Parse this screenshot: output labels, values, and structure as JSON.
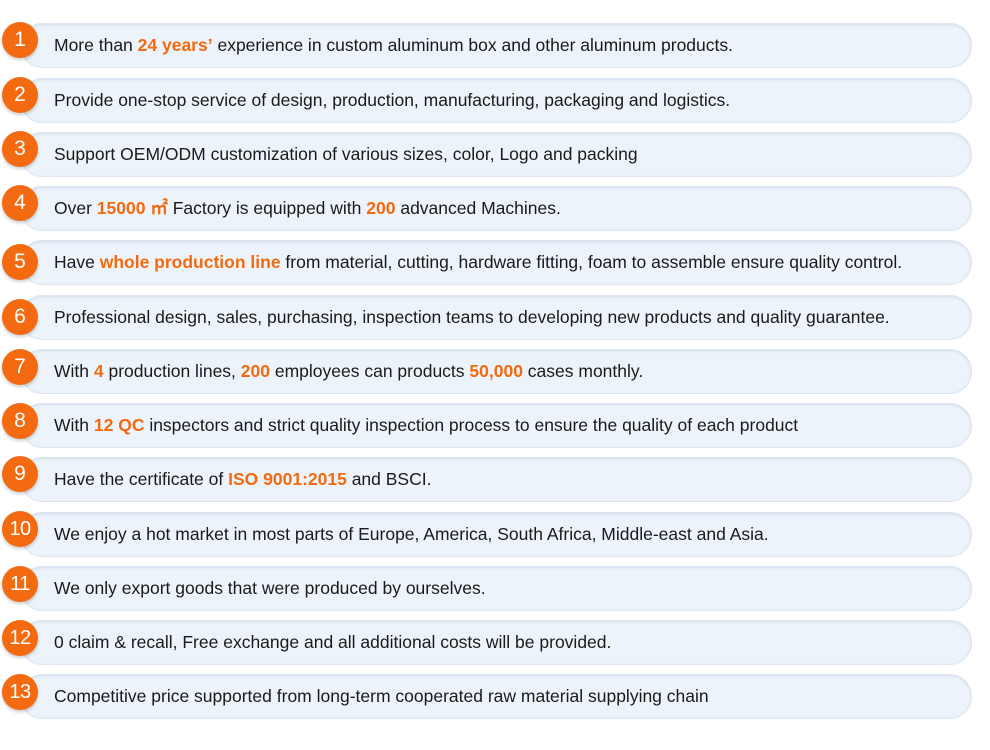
{
  "items": [
    {
      "num": "1",
      "segments": [
        {
          "text": "More than ",
          "hl": false
        },
        {
          "text": "24 years’",
          "hl": true
        },
        {
          "text": " experience in custom aluminum box and other aluminum products.",
          "hl": false
        }
      ]
    },
    {
      "num": "2",
      "segments": [
        {
          "text": "Provide one-stop service of design, production, manufacturing, packaging and logistics.",
          "hl": false
        }
      ]
    },
    {
      "num": "3",
      "segments": [
        {
          "text": "Support OEM/ODM customization of various sizes, color, Logo and packing",
          "hl": false
        }
      ]
    },
    {
      "num": "4",
      "segments": [
        {
          "text": "Over ",
          "hl": false
        },
        {
          "text": "15000 ㎡",
          "hl": true
        },
        {
          "text": " Factory is equipped with ",
          "hl": false
        },
        {
          "text": "200",
          "hl": true
        },
        {
          "text": " advanced Machines.",
          "hl": false
        }
      ]
    },
    {
      "num": "5",
      "segments": [
        {
          "text": "Have ",
          "hl": false
        },
        {
          "text": "whole production line",
          "hl": true
        },
        {
          "text": " from material, cutting, hardware fitting, foam to assemble ensure quality control.",
          "hl": false
        }
      ]
    },
    {
      "num": "6",
      "segments": [
        {
          "text": "Professional design, sales, purchasing, inspection teams to developing new products and quality guarantee.",
          "hl": false
        }
      ]
    },
    {
      "num": "7",
      "segments": [
        {
          "text": "With ",
          "hl": false
        },
        {
          "text": "4",
          "hl": true
        },
        {
          "text": " production lines, ",
          "hl": false
        },
        {
          "text": "200",
          "hl": true
        },
        {
          "text": " employees can products ",
          "hl": false
        },
        {
          "text": "50,000",
          "hl": true
        },
        {
          "text": " cases monthly.",
          "hl": false
        }
      ]
    },
    {
      "num": "8",
      "segments": [
        {
          "text": "With ",
          "hl": false
        },
        {
          "text": "12 QC",
          "hl": true
        },
        {
          "text": " inspectors and strict quality inspection process to ensure the quality of each product",
          "hl": false
        }
      ]
    },
    {
      "num": "9",
      "segments": [
        {
          "text": "Have the certificate of ",
          "hl": false
        },
        {
          "text": "ISO 9001:2015",
          "hl": true
        },
        {
          "text": " and BSCI.",
          "hl": false
        }
      ]
    },
    {
      "num": "10",
      "segments": [
        {
          "text": "We enjoy a hot market in most parts of Europe, America, South Africa, Middle-east and Asia.",
          "hl": false
        }
      ]
    },
    {
      "num": "11",
      "segments": [
        {
          "text": "We only export goods that were produced by ourselves.",
          "hl": false
        }
      ]
    },
    {
      "num": "12",
      "segments": [
        {
          "text": "0 claim & recall, Free exchange and all additional costs will be provided.",
          "hl": false
        }
      ]
    },
    {
      "num": "13",
      "segments": [
        {
          "text": "Competitive price supported from long-term cooperated raw material supplying chain",
          "hl": false
        }
      ]
    }
  ],
  "colors": {
    "accent": "#f36a10",
    "pill": "#edf3fa",
    "text": "#1a1a1a"
  }
}
